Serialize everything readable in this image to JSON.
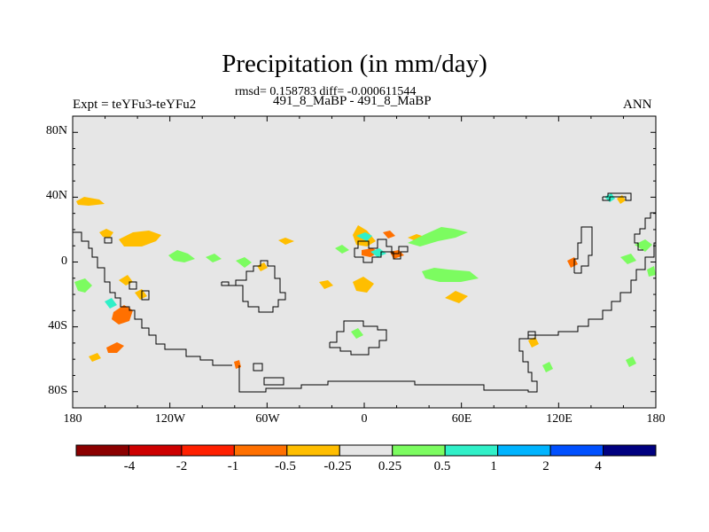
{
  "title": "Precipitation (in mm/day)",
  "stats_line": "rmsd= 0.158783 diff= -0.000611544",
  "subtitle": "491_8_MaBP - 491_8_MaBP",
  "expt_label": "Expt = teYFu3-teYFu2",
  "season": "ANN",
  "map": {
    "lat_range": [
      -90,
      90
    ],
    "lon_range": [
      -180,
      180
    ],
    "lat_ticks": [
      "80N",
      "40N",
      "0",
      "40S",
      "80S"
    ],
    "lon_ticks": [
      "180",
      "120W",
      "60W",
      "0",
      "60E",
      "120E",
      "180"
    ],
    "background_color": "#e6e6e6"
  },
  "colorbar": {
    "colors": [
      "#8b0000",
      "#cd0000",
      "#ff2000",
      "#ff7000",
      "#ffbe00",
      "#e6e6e6",
      "#7cfc60",
      "#30f0c8",
      "#00b4ff",
      "#0050ff",
      "#000080"
    ],
    "labels": [
      "-4",
      "-2",
      "-1",
      "-0.5",
      "-0.25",
      "0.25",
      "0.5",
      "1",
      "2",
      "4"
    ]
  }
}
